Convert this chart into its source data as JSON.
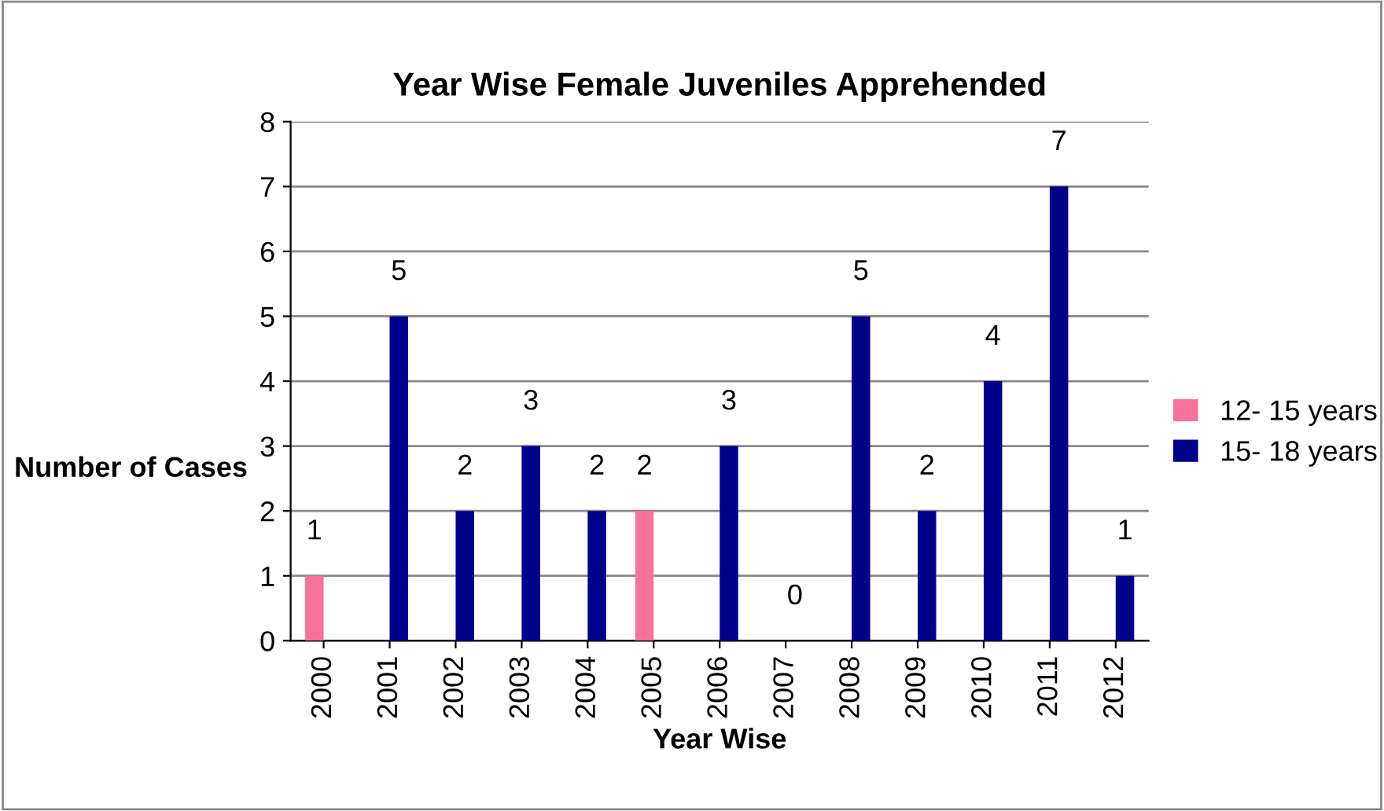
{
  "chart_data": {
    "type": "bar",
    "title": "Year Wise Female Juveniles Apprehended",
    "xlabel": "Year Wise",
    "ylabel": "Number of Cases",
    "categories": [
      "2000",
      "2001",
      "2002",
      "2003",
      "2004",
      "2005",
      "2006",
      "2007",
      "2008",
      "2009",
      "2010",
      "2011",
      "2012"
    ],
    "series": [
      {
        "name": "12- 15 years",
        "color": "#f7729c",
        "values": [
          1,
          null,
          null,
          null,
          null,
          2,
          null,
          null,
          null,
          null,
          null,
          null,
          null
        ]
      },
      {
        "name": "15- 18 years",
        "color": "#00008b",
        "values": [
          null,
          5,
          2,
          3,
          2,
          null,
          3,
          0,
          5,
          2,
          4,
          7,
          1
        ]
      }
    ],
    "ylim": [
      0,
      8
    ],
    "yticks": [
      0,
      1,
      2,
      3,
      4,
      5,
      6,
      7,
      8
    ],
    "grid": "y",
    "legend": "right",
    "data_labels": true
  }
}
